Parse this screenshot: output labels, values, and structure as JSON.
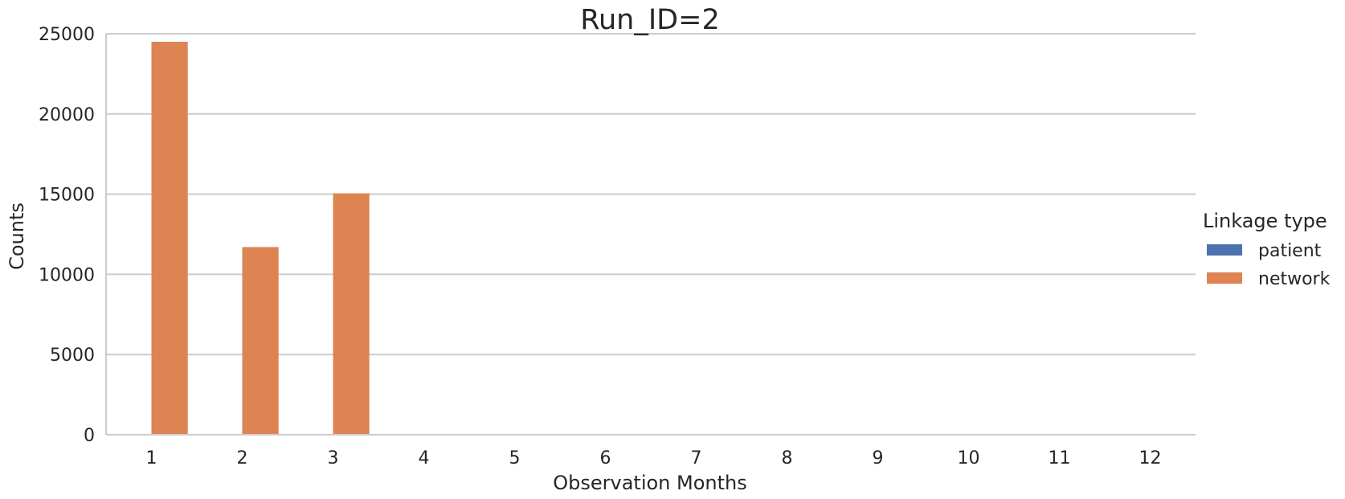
{
  "chart_data": {
    "type": "bar",
    "title": "Run_ID=2",
    "xlabel": "Observation Months",
    "ylabel": "Counts",
    "categories": [
      "1",
      "2",
      "3",
      "4",
      "5",
      "6",
      "7",
      "8",
      "9",
      "10",
      "11",
      "12"
    ],
    "yticks": [
      "0",
      "5000",
      "10000",
      "15000",
      "20000",
      "25000"
    ],
    "ylim": [
      0,
      25000
    ],
    "grid": "horizontal",
    "legend": {
      "title": "Linkage type",
      "placement": "right"
    },
    "series": [
      {
        "name": "patient",
        "color": "#4c72b0",
        "values": [
          0,
          0,
          0,
          0,
          0,
          0,
          0,
          0,
          0,
          0,
          0,
          0
        ]
      },
      {
        "name": "network",
        "color": "#dd8452",
        "values": [
          24500,
          11700,
          15050,
          0,
          0,
          0,
          0,
          0,
          0,
          0,
          0,
          0
        ]
      }
    ]
  }
}
